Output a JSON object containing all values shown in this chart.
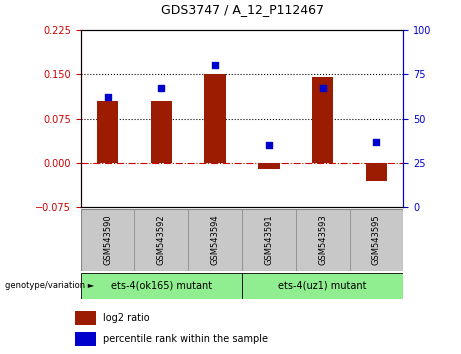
{
  "title": "GDS3747 / A_12_P112467",
  "samples": [
    "GSM543590",
    "GSM543592",
    "GSM543594",
    "GSM543591",
    "GSM543593",
    "GSM543595"
  ],
  "log2_ratio": [
    0.105,
    0.105,
    0.15,
    -0.01,
    0.145,
    -0.03
  ],
  "percentile_rank": [
    62,
    67,
    80,
    35,
    67,
    37
  ],
  "bar_color": "#9B1C00",
  "dot_color": "#0000CD",
  "ylim_left": [
    -0.075,
    0.225
  ],
  "ylim_right": [
    0,
    100
  ],
  "yticks_left": [
    -0.075,
    0,
    0.075,
    0.15,
    0.225
  ],
  "yticks_right": [
    0,
    25,
    50,
    75,
    100
  ],
  "hlines": [
    0.075,
    0.15
  ],
  "hline_zero_color": "#CC0000",
  "hline_color": "#000000",
  "group1_label": "ets-4(ok165) mutant",
  "group2_label": "ets-4(uz1) mutant",
  "group1_indices": [
    0,
    1,
    2
  ],
  "group2_indices": [
    3,
    4,
    5
  ],
  "group_label_prefix": "genotype/variation",
  "legend_log2": "log2 ratio",
  "legend_pct": "percentile rank within the sample",
  "bg_plot": "#FFFFFF",
  "bg_label_area": "#C8C8C8",
  "bg_group1": "#90EE90",
  "bg_group2": "#90EE90",
  "bar_width": 0.4,
  "title_fontsize": 9,
  "tick_fontsize": 7,
  "sample_fontsize": 6,
  "group_fontsize": 7,
  "legend_fontsize": 7
}
